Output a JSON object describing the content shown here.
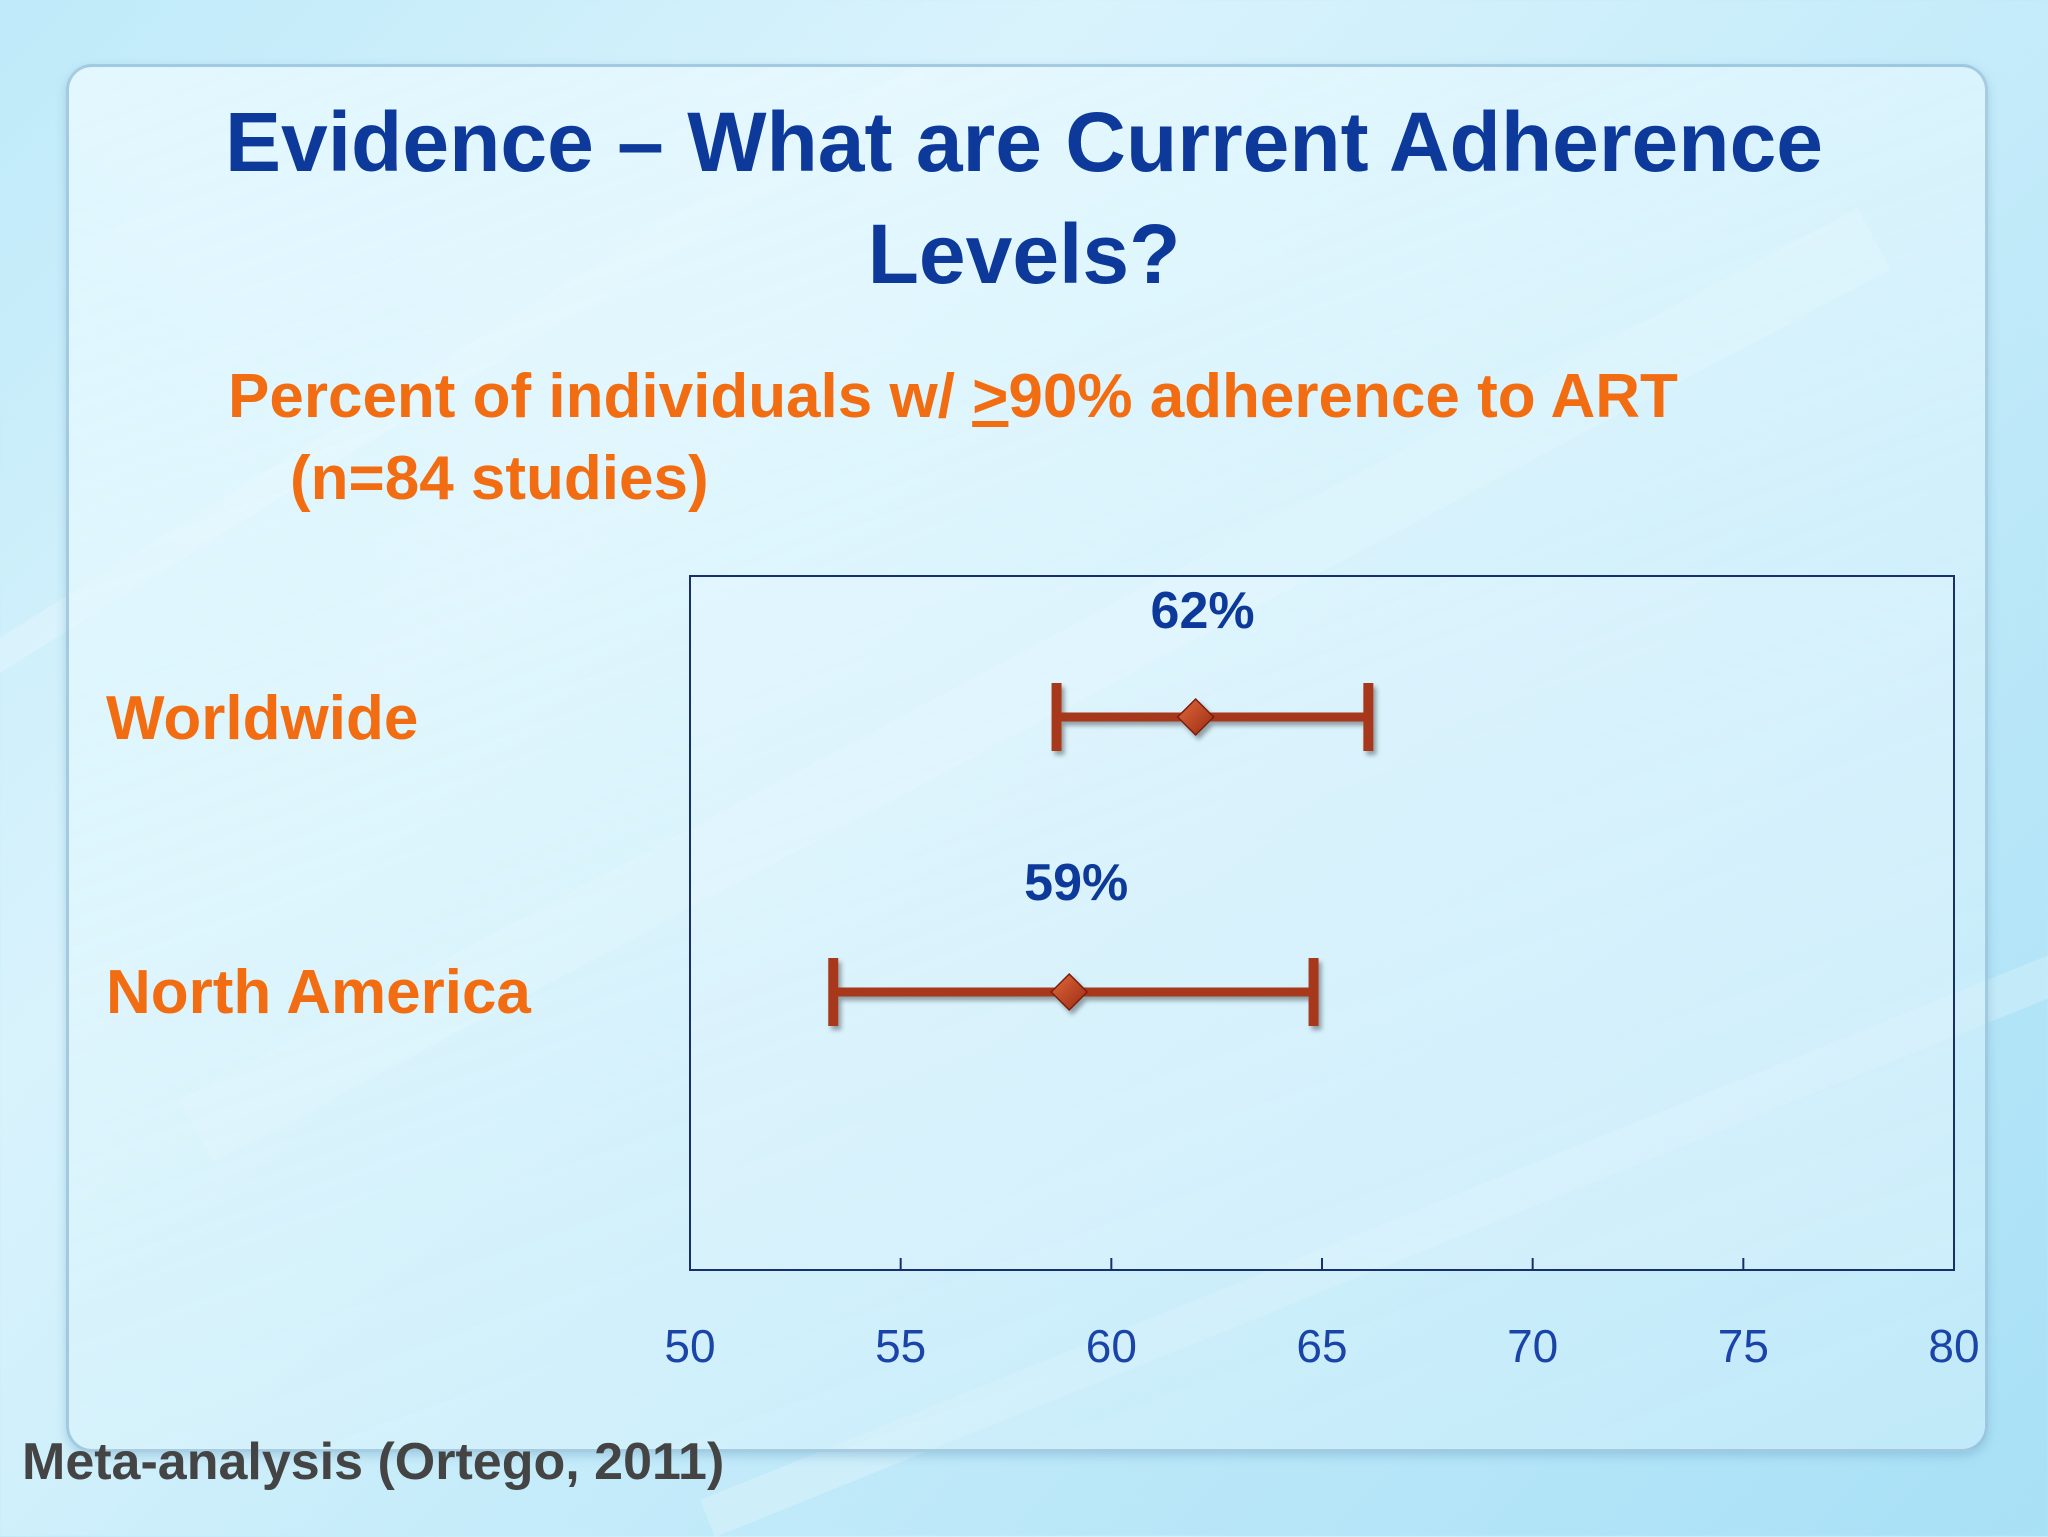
{
  "slide": {
    "title": "Evidence – What are Current Adherence Levels?",
    "subtitle_part1": "Percent of individuals w/ ",
    "subtitle_ge": ">",
    "subtitle_part2": "90% adherence to ART",
    "subtitle_line2": "(n=84 studies)",
    "footnote": "Meta-analysis (Ortego, 2011)"
  },
  "colors": {
    "title": "#0d3a9a",
    "subtitle": "#f26d12",
    "category_labels": "#f26d12",
    "data_labels": "#0d3a9a",
    "tick_labels": "#1a44a8",
    "error_bar": "#a8381e",
    "marker": "#c0391c",
    "axis_frame": "#16306e"
  },
  "chart_data": {
    "type": "scatter",
    "subtype": "point-with-error-bars",
    "categories": [
      "Worldwide",
      "North America"
    ],
    "values": [
      62,
      59
    ],
    "lower": [
      58.7,
      53.4
    ],
    "upper": [
      66.1,
      64.8
    ],
    "data_labels": [
      "62%",
      "59%"
    ],
    "xlim": [
      50,
      80
    ],
    "xticks": [
      50,
      55,
      60,
      65,
      70,
      75,
      80
    ],
    "xtick_labels": [
      "50",
      "55",
      "60",
      "65",
      "70",
      "75",
      "80"
    ],
    "marker": "diamond",
    "grid": false,
    "legend": "none"
  }
}
